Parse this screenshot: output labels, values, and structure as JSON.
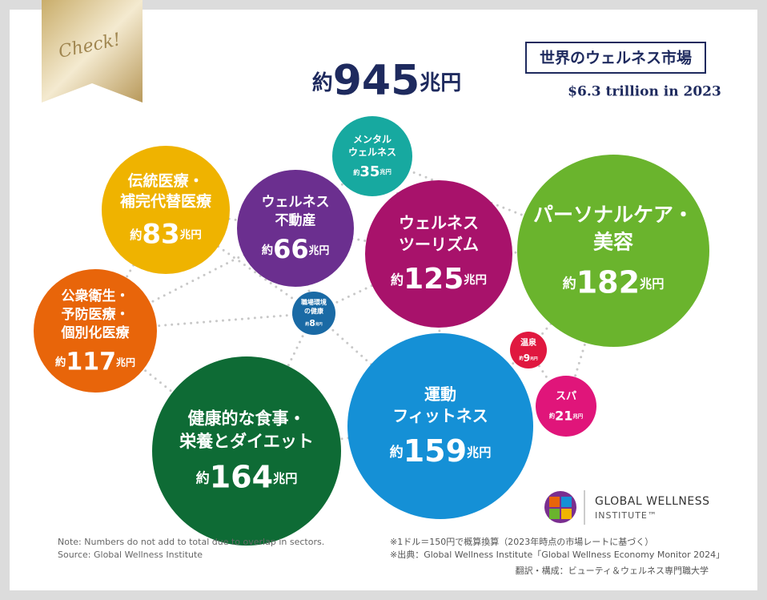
{
  "badge": "Check!",
  "total": {
    "prefix": "約",
    "number": 945,
    "unit": "兆円"
  },
  "market_label": "世界のウェルネス市場",
  "usd_total": "$6.3 trillion in 2023",
  "bubbles": [
    {
      "lines": [
        "伝統医療・",
        "補完代替医療"
      ],
      "prefix": "約",
      "number": 83,
      "unit": "兆円"
    },
    {
      "lines": [
        "ウェルネス",
        "不動産"
      ],
      "prefix": "約",
      "number": 66,
      "unit": "兆円"
    },
    {
      "lines": [
        "メンタル",
        "ウェルネス"
      ],
      "prefix": "約",
      "number": 35,
      "unit": "兆円"
    },
    {
      "lines": [
        "ウェルネス",
        "ツーリズム"
      ],
      "prefix": "約",
      "number": 125,
      "unit": "兆円"
    },
    {
      "lines": [
        "パーソナルケア・",
        "美容"
      ],
      "prefix": "約",
      "number": 182,
      "unit": "兆円"
    },
    {
      "lines": [
        "公衆衛生・",
        "予防医療・",
        "個別化医療"
      ],
      "prefix": "約",
      "number": 117,
      "unit": "兆円"
    },
    {
      "lines": [
        "職場環境",
        "の健康"
      ],
      "prefix": "約",
      "number": 8,
      "unit": "兆円"
    },
    {
      "lines": [
        "温泉"
      ],
      "prefix": "約",
      "number": 9,
      "unit": "兆円"
    },
    {
      "lines": [
        "スパ"
      ],
      "prefix": "約",
      "number": 21,
      "unit": "兆円"
    },
    {
      "lines": [
        "健康的な食事・",
        "栄養とダイエット"
      ],
      "prefix": "約",
      "number": 164,
      "unit": "兆円"
    },
    {
      "lines": [
        "運動",
        "フィットネス"
      ],
      "prefix": "約",
      "number": 159,
      "unit": "兆円"
    }
  ],
  "notes": [
    "Note: Numbers do not add to total due to overlap in sectors.",
    "Source: Global Wellness Institute"
  ],
  "footnotes": [
    "※1ドル＝150円で概算換算（2023年時点の市場レートに基づく）",
    "※出典：Global Wellness Institute「Global Wellness Economy Monitor 2024」",
    "翻訳・構成：ビューティ＆ウェルネス専門職大学"
  ],
  "logo": {
    "name": "GLOBAL WELLNESS",
    "sub": "INSTITUTE™"
  }
}
